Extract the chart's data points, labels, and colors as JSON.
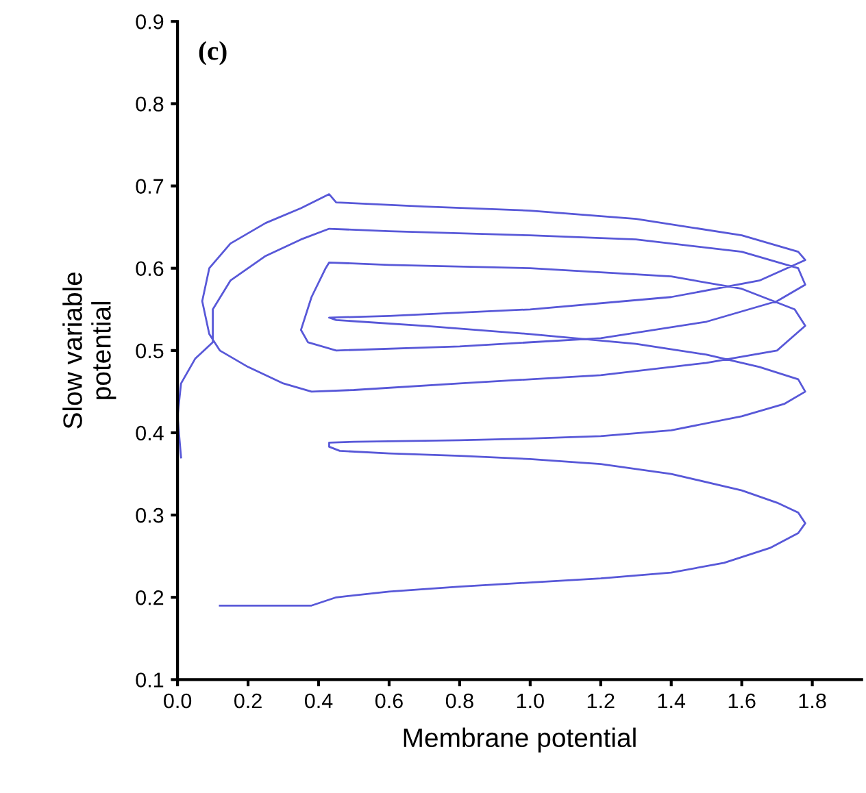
{
  "chart_data": {
    "type": "line",
    "xlabel": "Membrane potential",
    "ylabel": "Slow variable\npotential",
    "annotations": [
      "(c)"
    ],
    "x": [
      0.12,
      0.38,
      0.45,
      0.6,
      0.8,
      1.0,
      1.2,
      1.4,
      1.55,
      1.68,
      1.76,
      1.78,
      1.76,
      1.7,
      1.6,
      1.4,
      1.2,
      1.0,
      0.8,
      0.6,
      0.46,
      0.43,
      0.43,
      0.5,
      0.8,
      1.0,
      1.2,
      1.4,
      1.6,
      1.72,
      1.78,
      1.76,
      1.65,
      1.5,
      1.3,
      1.0,
      0.7,
      0.45,
      0.43,
      0.6,
      1.0,
      1.4,
      1.65,
      1.78,
      1.76,
      1.6,
      1.3,
      1.0,
      0.7,
      0.45,
      0.43,
      0.35,
      0.25,
      0.15,
      0.09,
      0.07,
      0.09,
      0.12,
      0.2,
      0.3,
      0.38,
      0.5,
      0.8,
      1.2,
      1.5,
      1.7,
      1.78,
      1.75,
      1.6,
      1.4,
      1.0,
      0.6,
      0.43,
      0.42,
      0.38,
      0.35,
      0.37,
      0.45,
      0.8,
      1.2,
      1.5,
      1.7,
      1.78,
      1.76,
      1.6,
      1.3,
      1.0,
      0.6,
      0.43,
      0.35,
      0.25,
      0.15,
      0.1,
      0.1,
      0.05,
      0.01,
      0.0,
      0.01
    ],
    "values": [
      0.19,
      0.19,
      0.2,
      0.207,
      0.213,
      0.218,
      0.223,
      0.23,
      0.242,
      0.26,
      0.278,
      0.29,
      0.303,
      0.315,
      0.33,
      0.35,
      0.362,
      0.368,
      0.372,
      0.375,
      0.378,
      0.383,
      0.388,
      0.389,
      0.391,
      0.393,
      0.396,
      0.403,
      0.42,
      0.435,
      0.45,
      0.465,
      0.48,
      0.495,
      0.508,
      0.52,
      0.53,
      0.537,
      0.54,
      0.542,
      0.55,
      0.565,
      0.585,
      0.61,
      0.62,
      0.64,
      0.66,
      0.67,
      0.675,
      0.68,
      0.69,
      0.673,
      0.655,
      0.63,
      0.6,
      0.56,
      0.52,
      0.5,
      0.48,
      0.46,
      0.45,
      0.452,
      0.46,
      0.47,
      0.485,
      0.5,
      0.53,
      0.55,
      0.575,
      0.59,
      0.6,
      0.604,
      0.607,
      0.6,
      0.565,
      0.525,
      0.51,
      0.5,
      0.505,
      0.515,
      0.535,
      0.56,
      0.58,
      0.6,
      0.62,
      0.635,
      0.64,
      0.645,
      0.648,
      0.635,
      0.615,
      0.585,
      0.55,
      0.51,
      0.49,
      0.46,
      0.42,
      0.37
    ],
    "color": "#5858d8",
    "marker": "none",
    "line_style": "solid",
    "grid": false,
    "legend": false,
    "xlim": [
      0,
      1.94
    ],
    "ylim": [
      0.1,
      0.9
    ],
    "xticks": [
      {
        "value": 0,
        "label": "0.0"
      },
      0.2,
      0.4,
      0.6,
      0.8,
      {
        "value": 1,
        "label": "1.0"
      },
      1.2,
      1.4,
      1.6,
      1.8
    ],
    "yticks": [
      0.1,
      0.2,
      0.3,
      0.4,
      0.5,
      0.6,
      0.7,
      0.8,
      0.9
    ]
  }
}
